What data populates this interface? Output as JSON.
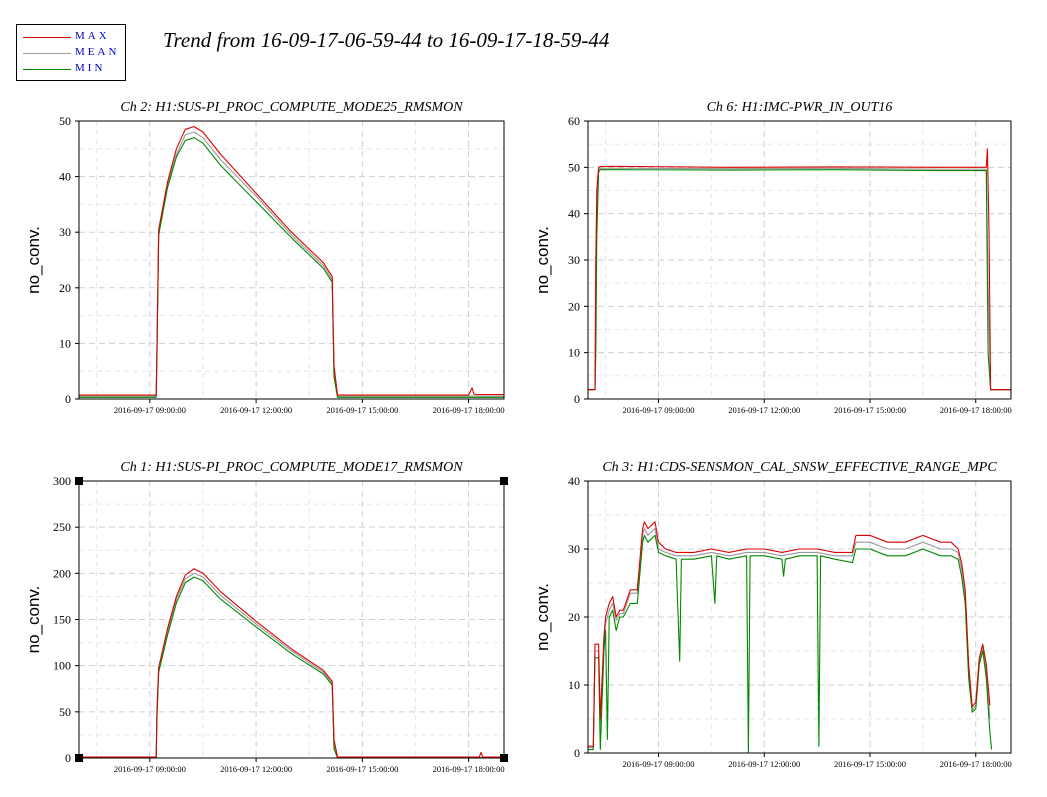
{
  "title": "Trend from 16-09-17-06-59-44 to 16-09-17-18-59-44",
  "legend": [
    {
      "label": "MAX",
      "color": "#dd0000"
    },
    {
      "label": "MEAN",
      "color": "#999999"
    },
    {
      "label": "MIN",
      "color": "#008800"
    }
  ],
  "chart_data": [
    {
      "type": "line",
      "title": "Ch 2: H1:SUS-PI_PROC_COMPUTE_MODE25_RMSMON",
      "ylabel": "no_conv.",
      "xlabel": "",
      "xlim": [
        0,
        12
      ],
      "ylim": [
        0,
        50
      ],
      "yticks": [
        0,
        10,
        20,
        30,
        40,
        50
      ],
      "xticks": [
        2.0,
        5.0,
        8.0,
        11.0
      ],
      "xtick_labels": [
        "2016-09-17 09:00:00",
        "2016-09-17 12:00:00",
        "2016-09-17 15:00:00",
        "2016-09-17 18:00:00"
      ],
      "grid": true,
      "series": [
        {
          "name": "MAX",
          "color": "#dd0000",
          "x": [
            0,
            2.18,
            2.2,
            2.25,
            2.5,
            2.75,
            3.0,
            3.25,
            3.5,
            4.0,
            5.0,
            6.0,
            6.9,
            7.15,
            7.2,
            7.3,
            8.0,
            9.0,
            10.0,
            11.0,
            11.1,
            11.15,
            11.2,
            12.0
          ],
          "y": [
            0.7,
            0.7,
            9,
            30.5,
            39,
            45,
            48.5,
            49,
            48,
            44,
            37,
            30,
            24.5,
            22,
            6,
            0.7,
            0.7,
            0.7,
            0.7,
            0.7,
            2,
            0.9,
            0.8,
            0.8
          ]
        },
        {
          "name": "MEAN",
          "color": "#999999",
          "x": [
            0,
            2.18,
            2.2,
            2.25,
            2.5,
            2.75,
            3.0,
            3.25,
            3.5,
            4.0,
            5.0,
            6.0,
            6.9,
            7.15,
            7.2,
            7.3,
            8.0,
            9.0,
            10.0,
            11.0,
            12.0
          ],
          "y": [
            0.5,
            0.5,
            8,
            30,
            38.5,
            44,
            47.5,
            48,
            47,
            43,
            36.5,
            29.5,
            24,
            21.5,
            5,
            0.5,
            0.5,
            0.5,
            0.5,
            0.5,
            0.5
          ]
        },
        {
          "name": "MIN",
          "color": "#008800",
          "x": [
            0,
            2.18,
            2.2,
            2.25,
            2.5,
            2.75,
            3.0,
            3.25,
            3.5,
            4.0,
            5.0,
            6.0,
            6.9,
            7.15,
            7.2,
            7.3,
            8.0,
            9.0,
            10.0,
            11.0,
            12.0
          ],
          "y": [
            0.3,
            0.3,
            7,
            29.5,
            38,
            43.5,
            46.5,
            47,
            46,
            42,
            35.5,
            29,
            23.5,
            21,
            4,
            0.3,
            0.3,
            0.3,
            0.3,
            0.3,
            0.3
          ]
        }
      ]
    },
    {
      "type": "line",
      "title": "Ch 6: H1:IMC-PWR_IN_OUT16",
      "ylabel": "no_conv.",
      "xlabel": "",
      "xlim": [
        0,
        12
      ],
      "ylim": [
        0,
        60
      ],
      "yticks": [
        0,
        10,
        20,
        30,
        40,
        50,
        60
      ],
      "xticks": [
        2.0,
        5.0,
        8.0,
        11.0
      ],
      "xtick_labels": [
        "2016-09-17 09:00:00",
        "2016-09-17 12:00:00",
        "2016-09-17 15:00:00",
        "2016-09-17 18:00:00"
      ],
      "grid": true,
      "series": [
        {
          "name": "MAX",
          "color": "#dd0000",
          "x": [
            0,
            0.2,
            0.22,
            0.25,
            0.3,
            0.35,
            1.0,
            4.0,
            7.0,
            10.0,
            11.2,
            11.3,
            11.33,
            11.38,
            11.42,
            12.0
          ],
          "y": [
            2,
            2,
            30,
            45,
            50,
            50.2,
            50.2,
            50,
            50.1,
            50,
            50,
            50,
            54,
            35,
            2,
            2
          ]
        },
        {
          "name": "MEAN",
          "color": "#999999",
          "x": [
            0,
            0.2,
            0.22,
            0.25,
            0.3,
            0.35,
            1.0,
            4.0,
            7.0,
            10.0,
            11.3,
            11.35,
            11.42,
            12.0
          ],
          "y": [
            2,
            2,
            20,
            40,
            49.5,
            49.8,
            49.8,
            49.7,
            49.8,
            49.6,
            49.6,
            25,
            2,
            2
          ]
        },
        {
          "name": "MIN",
          "color": "#008800",
          "x": [
            0,
            0.2,
            0.22,
            0.25,
            0.3,
            0.35,
            1.0,
            4.0,
            7.0,
            10.0,
            11.3,
            11.35,
            11.42,
            12.0
          ],
          "y": [
            2,
            2,
            10,
            35,
            49,
            49.5,
            49.5,
            49.4,
            49.5,
            49.3,
            49.3,
            10,
            2,
            2
          ]
        }
      ]
    },
    {
      "type": "line",
      "title": "Ch 1: H1:SUS-PI_PROC_COMPUTE_MODE17_RMSMON",
      "ylabel": "no_conv.",
      "xlabel": "",
      "xlim": [
        0,
        12
      ],
      "ylim": [
        0,
        300
      ],
      "yticks": [
        0,
        50,
        100,
        150,
        200,
        250,
        300
      ],
      "xticks": [
        2.0,
        5.0,
        8.0,
        11.0
      ],
      "xtick_labels": [
        "2016-09-17 09:00:00",
        "2016-09-17 12:00:00",
        "2016-09-17 15:00:00",
        "2016-09-17 18:00:00"
      ],
      "grid": true,
      "series": [
        {
          "name": "MAX",
          "color": "#dd0000",
          "x": [
            0,
            2.18,
            2.2,
            2.25,
            2.5,
            2.75,
            3.0,
            3.25,
            3.5,
            4.0,
            5.0,
            6.0,
            6.9,
            7.15,
            7.2,
            7.3,
            8.0,
            9.0,
            10.0,
            11.0,
            11.3,
            11.35,
            11.4,
            12.0
          ],
          "y": [
            1,
            1,
            50,
            98,
            140,
            175,
            198,
            205,
            200,
            180,
            148,
            118,
            95,
            83,
            20,
            1,
            1,
            1,
            1,
            1,
            1,
            6,
            1,
            1
          ]
        },
        {
          "name": "MEAN",
          "color": "#999999",
          "x": [
            0,
            2.18,
            2.2,
            2.25,
            2.5,
            2.75,
            3.0,
            3.25,
            3.5,
            4.0,
            5.0,
            6.0,
            6.9,
            7.15,
            7.2,
            7.3,
            8.0,
            12.0
          ],
          "y": [
            0.5,
            0.5,
            45,
            96,
            137,
            172,
            194,
            200,
            196,
            176,
            145,
            116,
            93,
            81,
            15,
            0.5,
            0.5,
            0.5
          ]
        },
        {
          "name": "MIN",
          "color": "#008800",
          "x": [
            0,
            2.18,
            2.2,
            2.25,
            2.5,
            2.75,
            3.0,
            3.25,
            3.5,
            4.0,
            5.0,
            6.0,
            6.9,
            7.15,
            7.2,
            7.3,
            8.0,
            12.0
          ],
          "y": [
            0.2,
            0.2,
            40,
            93,
            133,
            168,
            190,
            196,
            192,
            172,
            142,
            113,
            91,
            79,
            10,
            0.2,
            0.2,
            0.2
          ]
        }
      ]
    },
    {
      "type": "line",
      "title": "Ch 3: H1:CDS-SENSMON_CAL_SNSW_EFFECTIVE_RANGE_MPC",
      "ylabel": "no_conv.",
      "xlabel": "",
      "xlim": [
        0,
        12
      ],
      "ylim": [
        0,
        40
      ],
      "yticks": [
        0,
        10,
        20,
        30,
        40
      ],
      "xticks": [
        2.0,
        5.0,
        8.0,
        11.0
      ],
      "xtick_labels": [
        "2016-09-17 09:00:00",
        "2016-09-17 12:00:00",
        "2016-09-17 15:00:00",
        "2016-09-17 18:00:00"
      ],
      "grid": true,
      "series": [
        {
          "name": "MAX",
          "color": "#dd0000",
          "x": [
            0,
            0.15,
            0.2,
            0.3,
            0.35,
            0.45,
            0.5,
            0.6,
            0.7,
            0.8,
            0.9,
            1.0,
            1.2,
            1.4,
            1.55,
            1.6,
            1.7,
            1.9,
            2.0,
            2.2,
            2.5,
            3.0,
            3.5,
            4.0,
            4.5,
            5.0,
            5.5,
            6.0,
            6.5,
            7.0,
            7.5,
            7.6,
            7.8,
            8.0,
            8.5,
            9.0,
            9.5,
            10.0,
            10.3,
            10.5,
            10.6,
            10.7,
            10.8,
            10.9,
            11.0,
            11.1,
            11.2,
            11.3,
            11.4
          ],
          "y": [
            1,
            1,
            16,
            16,
            5,
            17,
            20,
            22,
            23,
            20,
            21,
            21,
            24,
            24,
            33,
            34,
            33,
            34,
            31,
            30,
            29.5,
            29.5,
            30,
            29.5,
            30,
            30,
            29.5,
            30,
            30,
            29.5,
            29.5,
            32,
            32,
            32,
            31,
            31,
            32,
            31,
            31,
            30,
            28,
            24,
            13,
            6.8,
            7.5,
            14,
            16,
            13,
            7
          ]
        },
        {
          "name": "MEAN",
          "color": "#999999",
          "x": [
            0,
            0.15,
            0.2,
            0.3,
            0.35,
            0.45,
            0.5,
            0.6,
            0.7,
            0.8,
            0.9,
            1.0,
            1.2,
            1.4,
            1.55,
            1.6,
            1.7,
            1.9,
            2.0,
            2.2,
            2.5,
            3.0,
            3.5,
            4.0,
            4.5,
            5.0,
            5.5,
            6.0,
            6.5,
            7.0,
            7.5,
            7.6,
            7.8,
            8.0,
            8.5,
            9.0,
            9.5,
            10.0,
            10.3,
            10.5,
            10.6,
            10.7,
            10.8,
            10.9,
            11.0,
            11.1,
            11.2,
            11.3,
            11.4
          ],
          "y": [
            0.8,
            0.8,
            15,
            15,
            4,
            16,
            19,
            21,
            22,
            19.5,
            20.5,
            20.5,
            23.5,
            23.5,
            32,
            33,
            32,
            33,
            30,
            29.5,
            29,
            29,
            29.5,
            29,
            29.5,
            29.5,
            29,
            29.5,
            29.5,
            29,
            29,
            31,
            31,
            31,
            30,
            30,
            31,
            30,
            30,
            29.5,
            27,
            23,
            12,
            6.3,
            7,
            13.5,
            15.5,
            12,
            5
          ]
        },
        {
          "name": "MIN",
          "color": "#008800",
          "x": [
            0,
            0.15,
            0.2,
            0.3,
            0.35,
            0.45,
            0.5,
            0.55,
            0.6,
            0.7,
            0.8,
            0.9,
            1.0,
            1.2,
            1.4,
            1.55,
            1.6,
            1.7,
            1.9,
            2.0,
            2.2,
            2.5,
            2.6,
            2.65,
            3.0,
            3.5,
            3.6,
            3.65,
            4.0,
            4.5,
            4.55,
            4.6,
            5.0,
            5.5,
            5.55,
            5.6,
            6.0,
            6.5,
            6.55,
            6.6,
            7.0,
            7.5,
            7.6,
            7.8,
            8.0,
            8.5,
            9.0,
            9.5,
            10.0,
            10.3,
            10.5,
            10.6,
            10.7,
            10.8,
            10.9,
            11.0,
            11.1,
            11.2,
            11.3,
            11.4,
            11.45
          ],
          "y": [
            0.5,
            0.5,
            14,
            14,
            0.5,
            15,
            18,
            2,
            20,
            21,
            18,
            20,
            20,
            22,
            22,
            31,
            32,
            31,
            32,
            29.5,
            29,
            28.5,
            13.5,
            28.5,
            28.5,
            29,
            22,
            29,
            28.5,
            29,
            0,
            29,
            29,
            28.5,
            26,
            28.5,
            29,
            29,
            1,
            29,
            28.5,
            28,
            30,
            30,
            30,
            29,
            29,
            30,
            29,
            29,
            28.5,
            26,
            22,
            11,
            6,
            6.5,
            13,
            15,
            11,
            3,
            0.5
          ]
        }
      ]
    }
  ]
}
